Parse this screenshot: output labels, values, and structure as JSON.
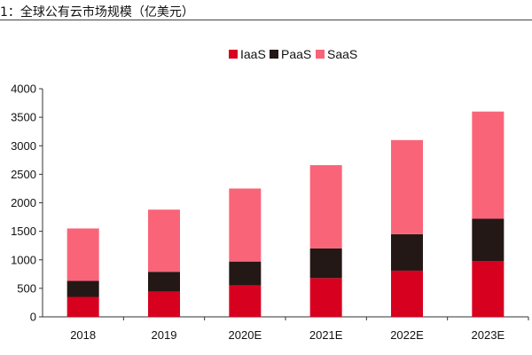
{
  "title": "1：全球公有云市场规模（亿美元）",
  "colors": {
    "IaaS": "#d7001f",
    "PaaS": "#231815",
    "SaaS": "#fa6478"
  },
  "chart_data": {
    "type": "bar",
    "stacked": true,
    "categories": [
      "2018",
      "2019",
      "2020E",
      "2021E",
      "2022E",
      "2023E"
    ],
    "series": [
      {
        "name": "IaaS",
        "values": [
          350,
          440,
          550,
          680,
          810,
          980
        ]
      },
      {
        "name": "PaaS",
        "values": [
          280,
          350,
          420,
          520,
          640,
          740
        ]
      },
      {
        "name": "SaaS",
        "values": [
          920,
          1090,
          1280,
          1460,
          1650,
          1880
        ]
      }
    ],
    "title": "1：全球公有云市场规模（亿美元）",
    "xlabel": "",
    "ylabel": "",
    "ylim": [
      0,
      4000
    ],
    "yticks": [
      0,
      500,
      1000,
      1500,
      2000,
      2500,
      3000,
      3500,
      4000
    ],
    "grid": false,
    "legend": "top-center"
  }
}
